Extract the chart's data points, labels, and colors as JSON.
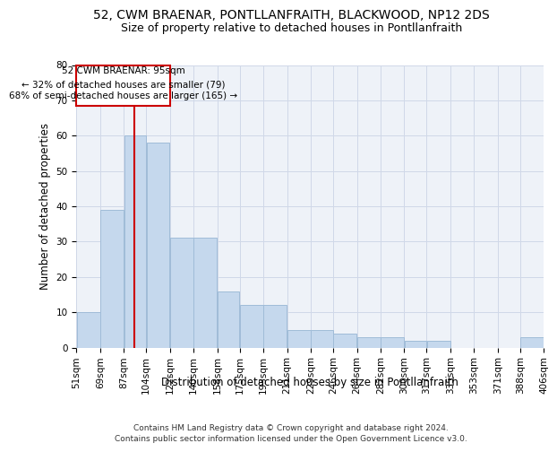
{
  "title1": "52, CWM BRAENAR, PONTLLANFRAITH, BLACKWOOD, NP12 2DS",
  "title2": "Size of property relative to detached houses in Pontllanfraith",
  "xlabel": "Distribution of detached houses by size in Pontllanfraith",
  "ylabel": "Number of detached properties",
  "footnote1": "Contains HM Land Registry data © Crown copyright and database right 2024.",
  "footnote2": "Contains public sector information licensed under the Open Government Licence v3.0.",
  "annotation_title": "52 CWM BRAENAR: 95sqm",
  "annotation_line1": "← 32% of detached houses are smaller (79)",
  "annotation_line2": "68% of semi-detached houses are larger (165) →",
  "bar_edges": [
    51,
    69,
    87,
    104,
    122,
    140,
    158,
    175,
    193,
    211,
    229,
    246,
    264,
    282,
    300,
    317,
    335,
    353,
    371,
    388,
    406
  ],
  "bar_heights": [
    10,
    39,
    60,
    58,
    31,
    31,
    16,
    12,
    12,
    5,
    5,
    4,
    3,
    3,
    2,
    2,
    0,
    0,
    0,
    3
  ],
  "bar_color": "#c5d8ed",
  "bar_edge_color": "#a0bcd8",
  "vline_color": "#cc0000",
  "vline_x": 95,
  "ylim": [
    0,
    80
  ],
  "yticks": [
    0,
    10,
    20,
    30,
    40,
    50,
    60,
    70,
    80
  ],
  "grid_color": "#d0d8e8",
  "bg_color": "#eef2f8",
  "annotation_box_color": "#cc0000",
  "title_fontsize": 10,
  "subtitle_fontsize": 9,
  "axis_label_fontsize": 8.5,
  "tick_fontsize": 7.5,
  "footnote_fontsize": 6.5
}
